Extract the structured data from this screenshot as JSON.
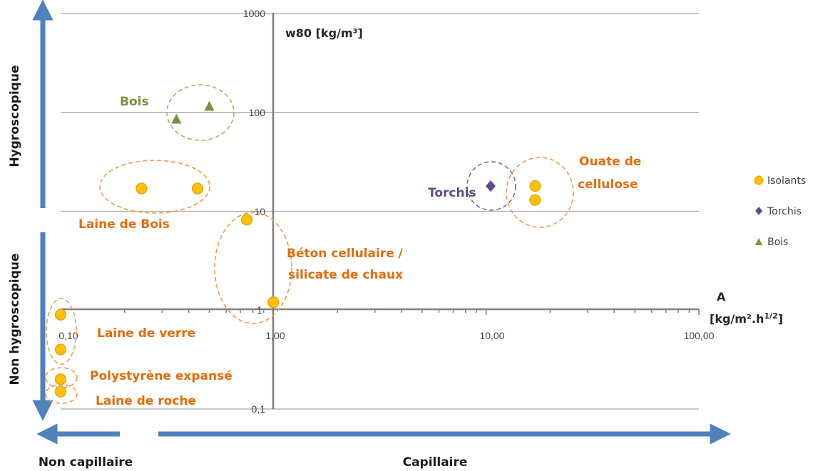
{
  "chart_data": {
    "type": "scatter",
    "x_scale": "log",
    "y_scale": "log",
    "xlim": [
      0.1,
      100
    ],
    "ylim": [
      0.1,
      1000
    ],
    "x_ticks": [
      "0,10",
      "1,00",
      "10,00",
      "100,00"
    ],
    "y_ticks": [
      "0,1",
      "1",
      "10",
      "100",
      "1000"
    ],
    "xlabel_lines": [
      "A",
      "[kg/m².h",
      "1/2",
      "]"
    ],
    "ylabel": "w80 [kg/m³]",
    "grid": "horizontal",
    "legend_position": "right",
    "series": [
      {
        "name": "Isolants",
        "marker": "circle",
        "color": "#FFC000",
        "points": [
          [
            0.24,
            17
          ],
          [
            0.44,
            17
          ],
          [
            0.75,
            8.2
          ],
          [
            1.0,
            1.2
          ],
          [
            0.1,
            0.9
          ],
          [
            0.1,
            0.4
          ],
          [
            0.1,
            0.2
          ],
          [
            0.1,
            0.15
          ],
          [
            17,
            18
          ],
          [
            17,
            13
          ]
        ]
      },
      {
        "name": "Torchis",
        "marker": "diamond",
        "color": "#5F4B8B",
        "points": [
          [
            10.5,
            18
          ]
        ]
      },
      {
        "name": "Bois",
        "marker": "triangle",
        "color": "#77933C",
        "points": [
          [
            0.35,
            85
          ],
          [
            0.5,
            115
          ]
        ]
      }
    ],
    "annotations": [
      {
        "text": "Bois",
        "color": "#77933C"
      },
      {
        "text": "Laine de Bois",
        "color": "#E46C0A"
      },
      {
        "text": "Torchis",
        "color": "#5F4B8B"
      },
      {
        "text": "Ouate de",
        "color": "#E46C0A"
      },
      {
        "text": "cellulose",
        "color": "#E46C0A"
      },
      {
        "text": "Béton cellulaire /",
        "color": "#E46C0A"
      },
      {
        "text": "silicate de chaux",
        "color": "#E46C0A"
      },
      {
        "text": "Laine de verre",
        "color": "#E46C0A"
      },
      {
        "text": "Polystyrène expansé",
        "color": "#E46C0A"
      },
      {
        "text": "Laine de roche",
        "color": "#E46C0A"
      }
    ]
  },
  "side_labels": {
    "top_left": "Hygroscopique",
    "bottom_left": "Non hygroscopique",
    "bottom_left_x": "Non capillaire",
    "bottom_center_x": "Capillaire"
  },
  "colors": {
    "arrow": "#4F81BD",
    "grid": "#A6A6A6",
    "axis": "#808080",
    "ellipse_orange": "#F79646",
    "ellipse_green": "#9BBB59",
    "ellipse_purple": "#8064A2"
  }
}
